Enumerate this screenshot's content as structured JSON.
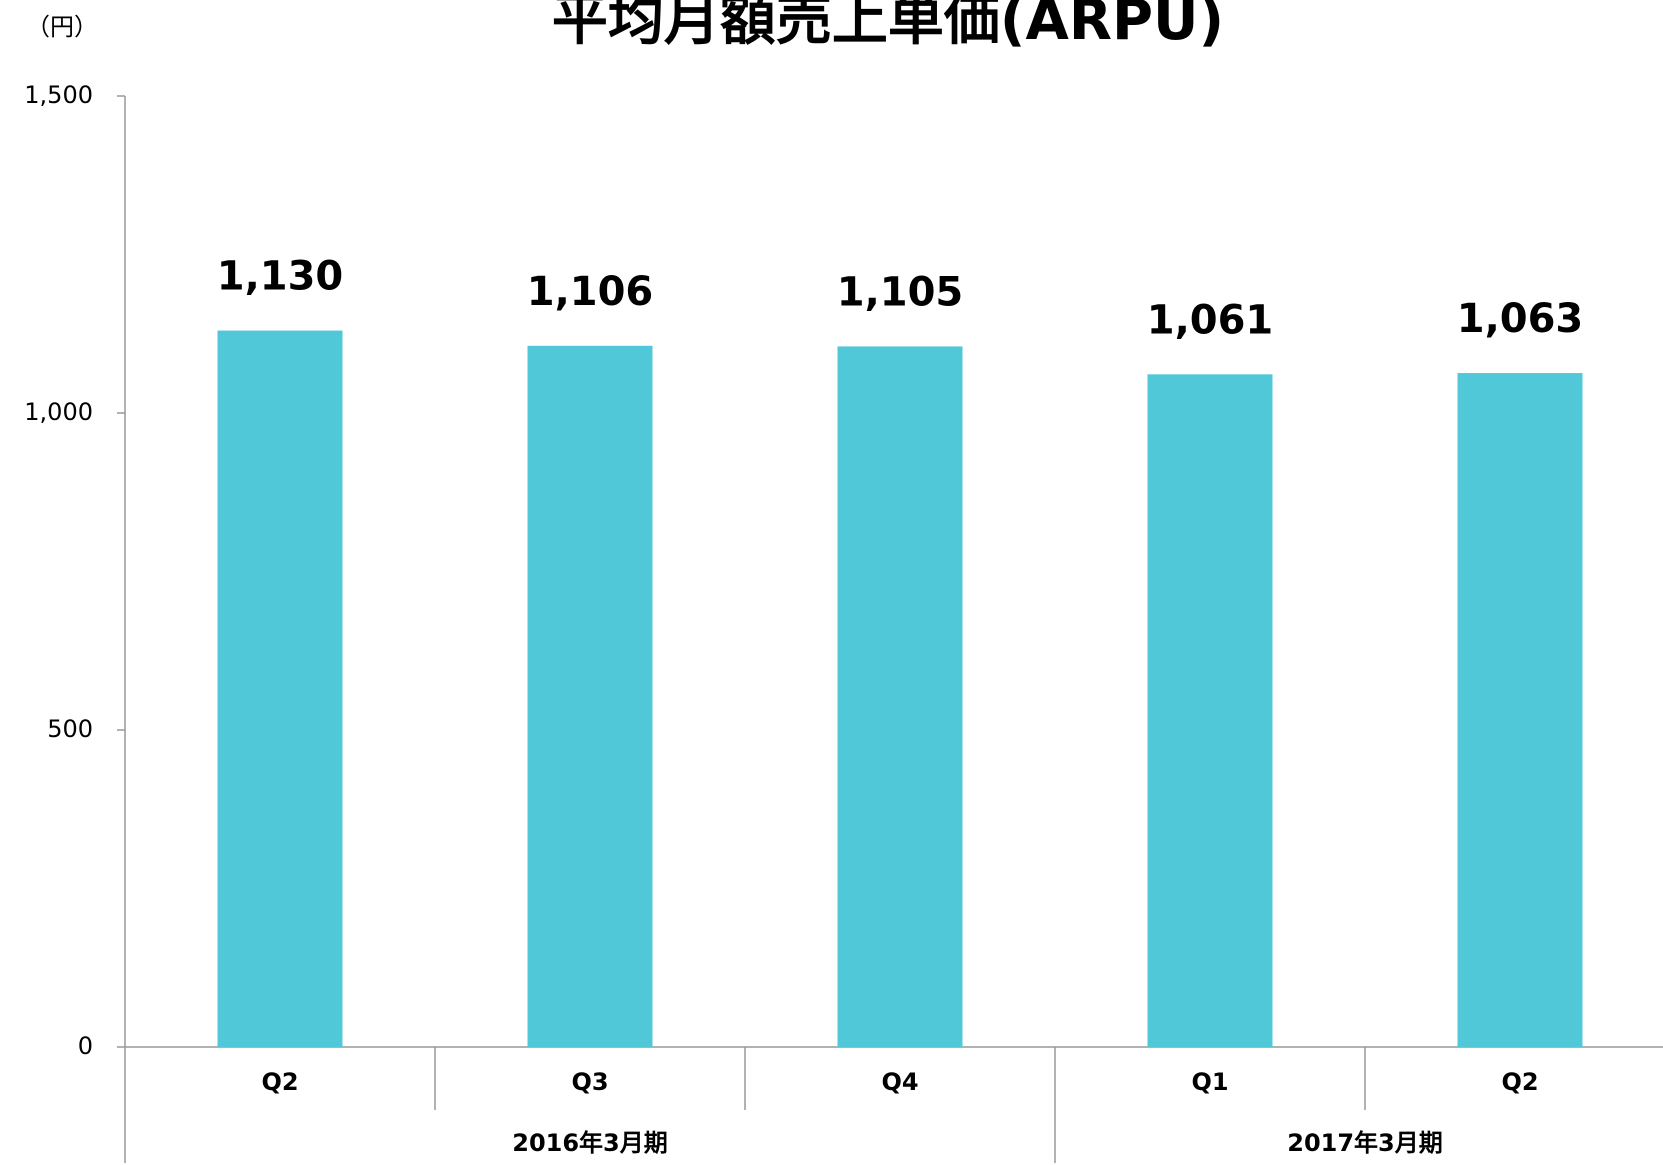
{
  "chart_data": {
    "type": "bar",
    "title": "平均月額売上単価(ARPU)",
    "unit_label": "（円）",
    "groups": [
      {
        "label": "2016年3月期",
        "categories": [
          "Q2",
          "Q3",
          "Q4"
        ],
        "values": [
          1130,
          1106,
          1105
        ],
        "value_labels": [
          "1,130",
          "1,106",
          "1,105"
        ]
      },
      {
        "label": "2017年3月期",
        "categories": [
          "Q1",
          "Q2"
        ],
        "values": [
          1061,
          1063
        ],
        "value_labels": [
          "1,061",
          "1,063"
        ]
      }
    ],
    "color": "#50c8d8",
    "ylim": [
      0,
      1500
    ],
    "yticks": [
      0,
      500,
      {
        "value": 1000,
        "label": "1,000"
      },
      {
        "value": 1500,
        "label": "1,500"
      }
    ],
    "grid": false
  }
}
